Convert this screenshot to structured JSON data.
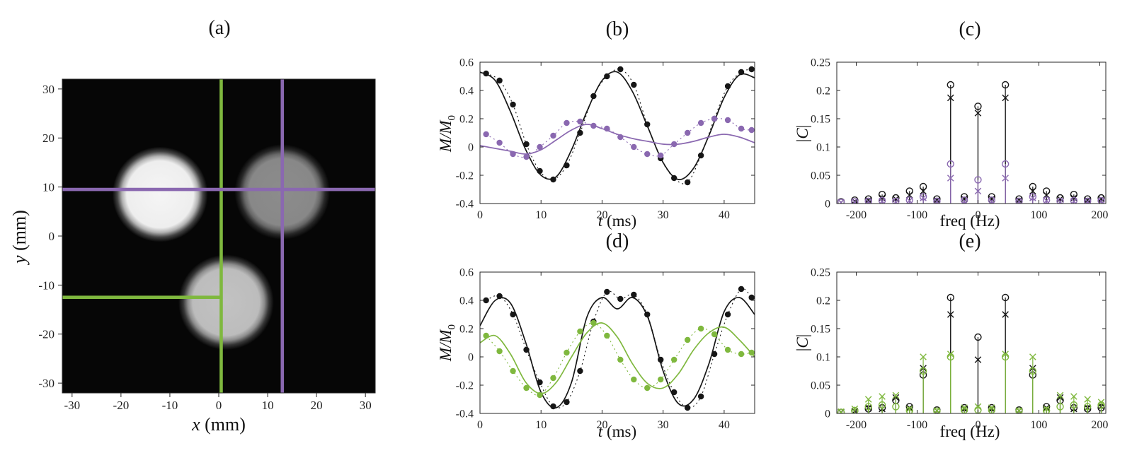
{
  "page": {
    "background": "#ffffff"
  },
  "palette": {
    "black": "#161616",
    "purple": "#8a68b0",
    "green": "#7fb83e",
    "axis": "#262626",
    "image_bg": "#060606"
  },
  "chart_data": [
    {
      "panel": "a",
      "type": "heatmap",
      "subtype": "phantom-image",
      "title": "(a)",
      "xlabel": [
        {
          "t": "x"
        },
        {
          "t": " (mm)"
        }
      ],
      "ylabel": [
        {
          "t": "y"
        },
        {
          "t": " (mm)"
        }
      ],
      "xlim": [
        -32,
        32
      ],
      "ylim": [
        -32,
        32
      ],
      "xticks": [
        -30,
        -20,
        -10,
        0,
        10,
        20,
        30
      ],
      "yticks": [
        30,
        20,
        10,
        0,
        -10,
        -20,
        -30
      ],
      "blobs": [
        {
          "cx": -12,
          "cy": 8.5,
          "r": 8,
          "level": 0.96
        },
        {
          "cx": 13,
          "cy": 9,
          "r": 8,
          "level": 0.55
        },
        {
          "cx": 1.5,
          "cy": -13.5,
          "r": 8,
          "level": 0.76
        }
      ],
      "profile_lines": [
        {
          "orient": "v",
          "pos": 0.5,
          "from": -32,
          "to": 32,
          "color": "green"
        },
        {
          "orient": "h",
          "pos": -12.5,
          "from": -32,
          "to": 0.8,
          "color": "green"
        },
        {
          "orient": "h",
          "pos": 9.5,
          "from": -32,
          "to": 32,
          "color": "purple"
        },
        {
          "orient": "v",
          "pos": 13,
          "from": -32,
          "to": 32,
          "color": "purple"
        }
      ]
    },
    {
      "panel": "b",
      "type": "line",
      "title": "(b)",
      "xlabel": [
        {
          "t": "t"
        },
        {
          "t": " (ms)"
        }
      ],
      "ylabel": [
        {
          "t": "M/M"
        },
        {
          "t": "0"
        }
      ],
      "xlim": [
        0,
        45
      ],
      "ylim": [
        -0.4,
        0.6
      ],
      "xticks": [
        0,
        10,
        20,
        30,
        40
      ],
      "yticks": [
        -0.4,
        -0.2,
        0,
        0.2,
        0.4,
        0.6
      ],
      "series": [
        {
          "name": "black-samples",
          "color": "black",
          "marker": "dot",
          "linestyle": "dotted",
          "x": [
            1,
            3.2,
            5.4,
            7.6,
            9.8,
            12,
            14.2,
            16.4,
            18.6,
            20.8,
            23,
            25.2,
            27.4,
            29.6,
            31.8,
            34,
            36.2,
            38.4,
            40.6,
            42.8,
            44.5
          ],
          "y": [
            0.52,
            0.47,
            0.3,
            0.02,
            -0.17,
            -0.23,
            -0.13,
            0.1,
            0.36,
            0.5,
            0.55,
            0.44,
            0.16,
            -0.08,
            -0.22,
            -0.25,
            -0.06,
            0.2,
            0.43,
            0.53,
            0.55
          ]
        },
        {
          "name": "black-fit",
          "color": "black",
          "marker": null,
          "linestyle": "solid",
          "x": [
            0,
            2.5,
            5,
            7.5,
            10,
            12.5,
            15,
            17.5,
            20,
            22.5,
            25,
            27.5,
            30,
            32.5,
            35,
            37.5,
            40,
            42.5,
            45
          ],
          "y": [
            0.53,
            0.47,
            0.25,
            -0.02,
            -0.2,
            -0.21,
            -0.02,
            0.25,
            0.47,
            0.53,
            0.39,
            0.14,
            -0.11,
            -0.23,
            -0.15,
            0.08,
            0.35,
            0.51,
            0.49
          ]
        },
        {
          "name": "purple-samples",
          "color": "purple",
          "marker": "dot",
          "linestyle": "dotted",
          "x": [
            1,
            3.2,
            5.4,
            7.6,
            9.8,
            12,
            14.2,
            16.4,
            18.6,
            20.8,
            23,
            25.2,
            27.4,
            29.6,
            31.8,
            34,
            36.2,
            38.4,
            40.6,
            42.8,
            44.5
          ],
          "y": [
            0.09,
            0.03,
            -0.05,
            -0.07,
            0.0,
            0.08,
            0.17,
            0.18,
            0.15,
            0.13,
            0.07,
            0.0,
            -0.05,
            -0.06,
            0.02,
            0.1,
            0.17,
            0.2,
            0.19,
            0.13,
            0.12
          ]
        },
        {
          "name": "purple-fit",
          "color": "purple",
          "marker": null,
          "linestyle": "solid",
          "x": [
            0,
            2.5,
            5,
            7.5,
            10,
            12.5,
            15,
            17.5,
            20,
            22.5,
            25,
            27.5,
            30,
            32.5,
            35,
            37.5,
            40,
            42.5,
            45
          ],
          "y": [
            0.01,
            -0.01,
            -0.03,
            -0.05,
            -0.02,
            0.05,
            0.12,
            0.16,
            0.13,
            0.09,
            0.06,
            0.04,
            0.02,
            0.02,
            0.04,
            0.07,
            0.09,
            0.07,
            0.03
          ]
        }
      ]
    },
    {
      "panel": "c",
      "type": "scatter",
      "subtype": "stem",
      "title": "(c)",
      "xlabel": [
        {
          "t": "freq (Hz)"
        }
      ],
      "ylabel": [
        {
          "t": "|"
        },
        {
          "t": "C"
        },
        {
          "t": "|"
        }
      ],
      "xlim": [
        -232,
        210
      ],
      "ylim": [
        0,
        0.25
      ],
      "xticks": [
        -200,
        -100,
        0,
        100,
        200
      ],
      "yticks": [
        0,
        0.05,
        0.1,
        0.15,
        0.2,
        0.25
      ],
      "freqs": [
        -225,
        -202.5,
        -180,
        -157.5,
        -135,
        -112.5,
        -90,
        -67.5,
        -45,
        -22.5,
        0,
        22.5,
        45,
        67.5,
        90,
        112.5,
        135,
        157.5,
        180,
        202.5
      ],
      "series": [
        {
          "name": "black-circle",
          "color": "black",
          "marker": "circle",
          "stem": true,
          "y": [
            0.003,
            0.006,
            0.008,
            0.016,
            0.01,
            0.022,
            0.03,
            0.008,
            0.21,
            0.012,
            0.172,
            0.012,
            0.21,
            0.008,
            0.03,
            0.022,
            0.01,
            0.016,
            0.008,
            0.01
          ]
        },
        {
          "name": "black-x",
          "color": "black",
          "marker": "x",
          "stem": true,
          "y": [
            0.002,
            0.004,
            0.006,
            0.01,
            0.008,
            0.015,
            0.022,
            0.006,
            0.187,
            0.008,
            0.16,
            0.008,
            0.187,
            0.006,
            0.022,
            0.015,
            0.008,
            0.01,
            0.006,
            0.008
          ]
        },
        {
          "name": "purple-circle",
          "color": "purple",
          "marker": "circle",
          "stem": true,
          "y": [
            0.002,
            0.003,
            0.004,
            0.005,
            0.004,
            0.006,
            0.012,
            0.004,
            0.07,
            0.006,
            0.042,
            0.006,
            0.07,
            0.004,
            0.012,
            0.006,
            0.004,
            0.005,
            0.004,
            0.005
          ]
        },
        {
          "name": "purple-x",
          "color": "purple",
          "marker": "x",
          "stem": true,
          "y": [
            0.002,
            0.003,
            0.003,
            0.004,
            0.003,
            0.005,
            0.01,
            0.003,
            0.045,
            0.004,
            0.022,
            0.004,
            0.045,
            0.003,
            0.01,
            0.005,
            0.003,
            0.004,
            0.003,
            0.004
          ]
        }
      ]
    },
    {
      "panel": "d",
      "type": "line",
      "title": "(d)",
      "xlabel": [
        {
          "t": "t"
        },
        {
          "t": " (ms)"
        }
      ],
      "ylabel": [
        {
          "t": "M/M"
        },
        {
          "t": "0"
        }
      ],
      "xlim": [
        0,
        45
      ],
      "ylim": [
        -0.4,
        0.6
      ],
      "xticks": [
        0,
        10,
        20,
        30,
        40
      ],
      "yticks": [
        -0.4,
        -0.2,
        0,
        0.2,
        0.4,
        0.6
      ],
      "series": [
        {
          "name": "black-samples",
          "color": "black",
          "marker": "dot",
          "linestyle": "dotted",
          "x": [
            1,
            3.2,
            5.4,
            7.6,
            9.8,
            12,
            14.2,
            16.4,
            18.6,
            20.8,
            23,
            25.2,
            27.4,
            29.6,
            31.8,
            34,
            36.2,
            38.4,
            40.6,
            42.8,
            44.5
          ],
          "y": [
            0.4,
            0.43,
            0.3,
            0.05,
            -0.18,
            -0.35,
            -0.32,
            -0.1,
            0.25,
            0.46,
            0.41,
            0.44,
            0.3,
            -0.02,
            -0.25,
            -0.36,
            -0.28,
            0.02,
            0.3,
            0.48,
            0.42
          ]
        },
        {
          "name": "black-fit",
          "color": "black",
          "marker": null,
          "linestyle": "solid",
          "x": [
            0,
            2.5,
            5,
            7.5,
            10,
            12.5,
            15,
            17.5,
            20,
            22.5,
            25,
            27.5,
            30,
            32.5,
            35,
            37.5,
            40,
            42.5,
            45
          ],
          "y": [
            0.22,
            0.4,
            0.38,
            0.1,
            -0.25,
            -0.36,
            -0.18,
            0.28,
            0.42,
            0.34,
            0.42,
            0.28,
            -0.1,
            -0.33,
            -0.3,
            -0.05,
            0.32,
            0.42,
            0.3
          ]
        },
        {
          "name": "green-samples",
          "color": "green",
          "marker": "dot",
          "linestyle": "dotted",
          "x": [
            1,
            3.2,
            5.4,
            7.6,
            9.8,
            12,
            14.2,
            16.4,
            18.6,
            20.8,
            23,
            25.2,
            27.4,
            29.6,
            31.8,
            34,
            36.2,
            38.4,
            40.6,
            42.8,
            44.5
          ],
          "y": [
            0.15,
            0.04,
            -0.1,
            -0.22,
            -0.27,
            -0.15,
            0.03,
            0.18,
            0.24,
            0.15,
            -0.02,
            -0.16,
            -0.22,
            -0.16,
            -0.02,
            0.12,
            0.2,
            0.16,
            0.05,
            0.02,
            0.03
          ]
        },
        {
          "name": "green-fit",
          "color": "green",
          "marker": null,
          "linestyle": "solid",
          "x": [
            0,
            2.5,
            5,
            7.5,
            10,
            12.5,
            15,
            17.5,
            20,
            22.5,
            25,
            27.5,
            30,
            32.5,
            35,
            37.5,
            40,
            42.5,
            45
          ],
          "y": [
            0.1,
            0.15,
            0.02,
            -0.18,
            -0.26,
            -0.18,
            0.0,
            0.17,
            0.24,
            0.14,
            -0.05,
            -0.19,
            -0.22,
            -0.12,
            0.05,
            0.17,
            0.21,
            0.12,
            0.0
          ]
        }
      ]
    },
    {
      "panel": "e",
      "type": "scatter",
      "subtype": "stem",
      "title": "(e)",
      "xlabel": [
        {
          "t": "freq (Hz)"
        }
      ],
      "ylabel": [
        {
          "t": "|"
        },
        {
          "t": "C"
        },
        {
          "t": "|"
        }
      ],
      "xlim": [
        -232,
        210
      ],
      "ylim": [
        0,
        0.25
      ],
      "xticks": [
        -200,
        -100,
        0,
        100,
        200
      ],
      "yticks": [
        0,
        0.05,
        0.1,
        0.15,
        0.2,
        0.25
      ],
      "freqs": [
        -225,
        -202.5,
        -180,
        -157.5,
        -135,
        -112.5,
        -90,
        -67.5,
        -45,
        -22.5,
        0,
        22.5,
        45,
        67.5,
        90,
        112.5,
        135,
        157.5,
        180,
        202.5
      ],
      "series": [
        {
          "name": "black-circle",
          "color": "black",
          "marker": "circle",
          "stem": true,
          "y": [
            0.002,
            0.005,
            0.008,
            0.01,
            0.023,
            0.012,
            0.068,
            0.006,
            0.205,
            0.01,
            0.135,
            0.01,
            0.205,
            0.006,
            0.068,
            0.012,
            0.023,
            0.01,
            0.008,
            0.01
          ]
        },
        {
          "name": "black-x",
          "color": "black",
          "marker": "x",
          "stem": true,
          "y": [
            0.002,
            0.004,
            0.01,
            0.008,
            0.028,
            0.01,
            0.08,
            0.005,
            0.175,
            0.008,
            0.095,
            0.008,
            0.175,
            0.005,
            0.08,
            0.01,
            0.028,
            0.008,
            0.01,
            0.012
          ]
        },
        {
          "name": "green-circle",
          "color": "green",
          "marker": "circle",
          "stem": true,
          "y": [
            0.002,
            0.005,
            0.012,
            0.015,
            0.012,
            0.005,
            0.075,
            0.004,
            0.1,
            0.006,
            0.006,
            0.006,
            0.1,
            0.004,
            0.075,
            0.005,
            0.012,
            0.015,
            0.012,
            0.015
          ]
        },
        {
          "name": "green-x",
          "color": "green",
          "marker": "x",
          "stem": true,
          "y": [
            0.003,
            0.008,
            0.025,
            0.03,
            0.032,
            0.008,
            0.1,
            0.005,
            0.105,
            0.01,
            0.012,
            0.01,
            0.105,
            0.005,
            0.1,
            0.008,
            0.032,
            0.03,
            0.025,
            0.02
          ]
        }
      ]
    }
  ]
}
